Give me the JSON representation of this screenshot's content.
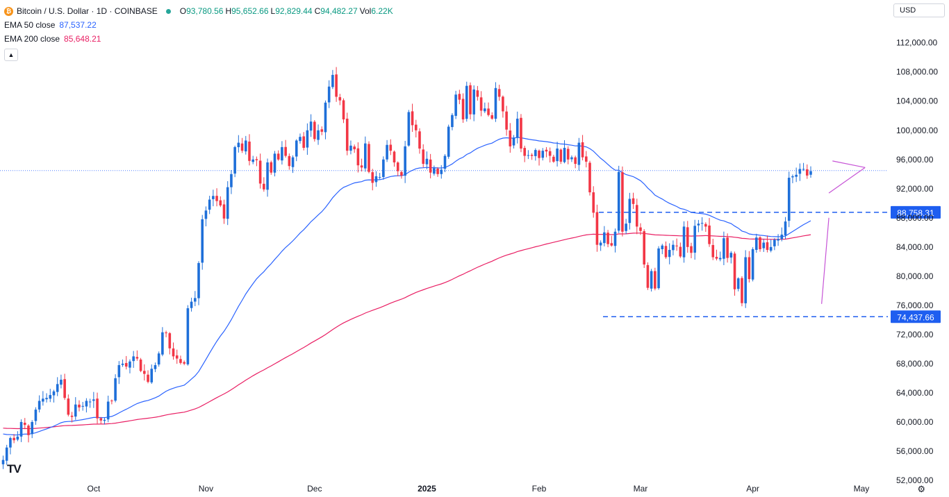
{
  "header": {
    "symbol_title": "Bitcoin / U.S. Dollar · 1D · COINBASE",
    "ohlc": [
      {
        "key": "O",
        "value": "93,780.56"
      },
      {
        "key": "H",
        "value": "95,652.66"
      },
      {
        "key": "L",
        "value": "92,829.44"
      },
      {
        "key": "C",
        "value": "94,482.27"
      },
      {
        "key": "Vol",
        "value": "6.22K"
      }
    ],
    "ema50": {
      "label": "EMA 50 close",
      "value": "87,537.22",
      "color": "#2962ff"
    },
    "ema200": {
      "label": "EMA 200 close",
      "value": "85,648.21",
      "color": "#e91e63"
    },
    "currency": "USD"
  },
  "colors": {
    "up": "#1e6fd9",
    "down": "#f23645",
    "ema50": "#2962ff",
    "ema200": "#e91e63",
    "level_line": "#1e5ef0",
    "pattern": "#c653d6",
    "last_price_line": "#2962ff"
  },
  "chart_data": {
    "type": "candlestick",
    "title": "Bitcoin / U.S. Dollar · 1D · COINBASE",
    "ylim": [
      50000,
      114000
    ],
    "y_ticks": [
      52000,
      56000,
      60000,
      64000,
      68000,
      72000,
      76000,
      80000,
      84000,
      88000,
      92000,
      96000,
      100000,
      104000,
      108000,
      112000
    ],
    "y_tick_labels": [
      "52,000.00",
      "56,000.00",
      "60,000.00",
      "64,000.00",
      "68,000.00",
      "72,000.00",
      "76,000.00",
      "80,000.00",
      "84,000.00",
      "88,000.00",
      "92,000.00",
      "96,000.00",
      "100,000.00",
      "104,000.00",
      "108,000.00",
      "112,000.00"
    ],
    "x_start_date": "2024-09-06",
    "x_labels": [
      {
        "date": "2024-10-01",
        "label": "Oct",
        "bold": false
      },
      {
        "date": "2024-11-01",
        "label": "Nov",
        "bold": false
      },
      {
        "date": "2024-12-01",
        "label": "Dec",
        "bold": false
      },
      {
        "date": "2025-01-01",
        "label": "2025",
        "bold": true
      },
      {
        "date": "2025-02-01",
        "label": "Feb",
        "bold": false
      },
      {
        "date": "2025-03-01",
        "label": "Mar",
        "bold": false
      },
      {
        "date": "2025-04-01",
        "label": "Apr",
        "bold": false
      },
      {
        "date": "2025-05-01",
        "label": "May",
        "bold": false
      }
    ],
    "closes": [
      54800,
      56500,
      57800,
      57500,
      58000,
      60000,
      59600,
      58200,
      60000,
      61700,
      62900,
      63200,
      63300,
      63700,
      64200,
      65200,
      65800,
      63300,
      61000,
      60700,
      62400,
      62000,
      62200,
      62900,
      62800,
      63100,
      60500,
      60200,
      60300,
      62800,
      62900,
      66000,
      67800,
      68000,
      67600,
      68300,
      69000,
      68700,
      67000,
      66600,
      65500,
      67300,
      67800,
      69400,
      72300,
      72200,
      70100,
      69000,
      68700,
      68100,
      68000,
      75600,
      76500,
      77000,
      81800,
      87800,
      89000,
      90500,
      91000,
      90300,
      89700,
      87900,
      92200,
      94000,
      97700,
      98300,
      97200,
      98600,
      95800,
      96000,
      95900,
      92700,
      91900,
      95600,
      94200,
      96800,
      96000,
      97700,
      96500,
      95100,
      96300,
      98600,
      99100,
      97600,
      100000,
      101200,
      98800,
      100000,
      99800,
      103800,
      106000,
      107600,
      104600,
      104100,
      101500,
      97200,
      97900,
      97400,
      95200,
      94900,
      98200,
      94300,
      92800,
      93700,
      93600,
      96000,
      98000,
      97200,
      95600,
      94400,
      93800,
      97800,
      102500,
      100700,
      100000,
      97500,
      95400,
      96100,
      94200,
      94800,
      94000,
      94600,
      96500,
      100500,
      102100,
      104900,
      104200,
      101500,
      106100,
      102200,
      105600,
      104600,
      102700,
      103000,
      102100,
      101600,
      105800,
      104600,
      102600,
      100100,
      97800,
      99000,
      101600,
      97500,
      96500,
      96600,
      96500,
      97300,
      96200,
      97200,
      97100,
      96500,
      95700,
      97500,
      95700,
      97600,
      96000,
      96300,
      95400,
      98300,
      96300,
      95700,
      91500,
      88700,
      84300,
      84600,
      86000,
      84400,
      84200,
      86100,
      94300,
      86100,
      87200,
      90600,
      89900,
      86800,
      86200,
      81600,
      78400,
      80700,
      78300,
      83800,
      84200,
      82600,
      83600,
      84300,
      84100,
      82700,
      86800,
      84000,
      83200,
      86900,
      87200,
      87300,
      86800,
      84400,
      82600,
      82400,
      82500,
      85200,
      82500,
      83200,
      78200,
      79700,
      76300,
      82600,
      79600,
      83700,
      85300,
      83700,
      84600,
      83600,
      84000,
      85000,
      85100,
      85700,
      87500,
      93500,
      93700,
      93900,
      94700,
      94700,
      93800,
      94400
    ],
    "ema50_close_last": 87537.22,
    "ema200_close_last": 85648.21,
    "levels": [
      {
        "value": 88758.31,
        "label": "88,758.31"
      },
      {
        "value": 74437.66,
        "label": "74,437.66"
      }
    ],
    "last_price": 94482.27,
    "pennant": {
      "pole": {
        "from": [
          "2025-04-20",
          76200
        ],
        "to": [
          "2025-04-22",
          88000
        ]
      },
      "upper": {
        "from": [
          "2025-04-23",
          95800
        ],
        "to": [
          "2025-05-02",
          94900
        ]
      },
      "lower": {
        "from": [
          "2025-04-22",
          91400
        ],
        "to": [
          "2025-05-02",
          94900
        ]
      }
    },
    "series": [
      {
        "name": "EMA 50 close"
      },
      {
        "name": "EMA 200 close"
      }
    ]
  }
}
